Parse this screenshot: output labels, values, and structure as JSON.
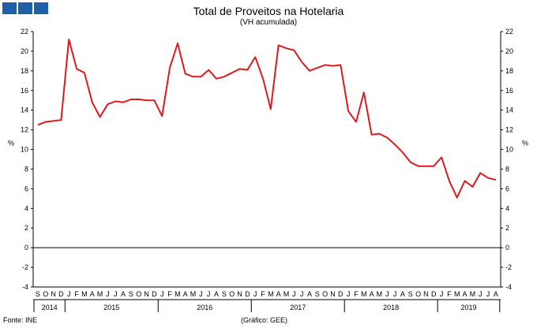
{
  "header": {
    "title": "Total de Proveitos na Hotelaria",
    "subtitle": "(VH acumulada)"
  },
  "footer": {
    "source": "Fonte: INE",
    "credit": "(Gráfico: GEE)"
  },
  "colors": {
    "logo": "#1f5fa8",
    "line": "#e0191b",
    "axis": "#000000"
  },
  "chart_data": {
    "type": "line",
    "title": "Total de Proveitos na Hotelaria",
    "subtitle": "(VH acumulada)",
    "ylabel_left": "%",
    "ylabel_right": "%",
    "ylim": [
      -4,
      22
    ],
    "yticks": [
      -4,
      -2,
      0,
      2,
      4,
      6,
      8,
      10,
      12,
      14,
      16,
      18,
      20,
      22
    ],
    "grid": false,
    "legend": "none",
    "month_labels": [
      "S",
      "O",
      "N",
      "D",
      "J",
      "F",
      "M",
      "A",
      "M",
      "J",
      "J",
      "A",
      "S",
      "O",
      "N",
      "D",
      "J",
      "F",
      "M",
      "A",
      "M",
      "J",
      "J",
      "A",
      "S",
      "O",
      "N",
      "D",
      "J",
      "F",
      "M",
      "A",
      "M",
      "J",
      "J",
      "A",
      "S",
      "O",
      "N",
      "D",
      "J",
      "F",
      "M",
      "A",
      "M",
      "J",
      "J",
      "A",
      "S",
      "O",
      "N",
      "D",
      "J",
      "F",
      "M",
      "A",
      "M",
      "J",
      "J",
      "A"
    ],
    "years": [
      {
        "label": "2014",
        "start": 0,
        "end": 4
      },
      {
        "label": "2015",
        "start": 4,
        "end": 16
      },
      {
        "label": "2016",
        "start": 16,
        "end": 28
      },
      {
        "label": "2017",
        "start": 28,
        "end": 40
      },
      {
        "label": "2018",
        "start": 40,
        "end": 52
      },
      {
        "label": "2019",
        "start": 52,
        "end": 60
      }
    ],
    "x": [
      "2014-09",
      "2014-10",
      "2014-11",
      "2014-12",
      "2015-01",
      "2015-02",
      "2015-03",
      "2015-04",
      "2015-05",
      "2015-06",
      "2015-07",
      "2015-08",
      "2015-09",
      "2015-10",
      "2015-11",
      "2015-12",
      "2016-01",
      "2016-02",
      "2016-03",
      "2016-04",
      "2016-05",
      "2016-06",
      "2016-07",
      "2016-08",
      "2016-09",
      "2016-10",
      "2016-11",
      "2016-12",
      "2017-01",
      "2017-02",
      "2017-03",
      "2017-04",
      "2017-05",
      "2017-06",
      "2017-07",
      "2017-08",
      "2017-09",
      "2017-10",
      "2017-11",
      "2017-12",
      "2018-01",
      "2018-02",
      "2018-03",
      "2018-04",
      "2018-05",
      "2018-06",
      "2018-07",
      "2018-08",
      "2018-09",
      "2018-10",
      "2018-11",
      "2018-12",
      "2019-01",
      "2019-02",
      "2019-03",
      "2019-04",
      "2019-05",
      "2019-06",
      "2019-07",
      "2019-08"
    ],
    "series": [
      {
        "values": [
          12.5,
          12.8,
          12.9,
          13.0,
          21.2,
          18.2,
          17.8,
          14.8,
          13.3,
          14.6,
          14.9,
          14.8,
          15.1,
          15.1,
          15.0,
          15.0,
          13.4,
          18.3,
          20.8,
          17.7,
          17.4,
          17.4,
          18.1,
          17.2,
          17.4,
          17.8,
          18.2,
          18.1,
          19.4,
          17.2,
          14.1,
          20.6,
          20.3,
          20.1,
          18.9,
          18.0,
          18.3,
          18.6,
          18.5,
          18.6,
          13.9,
          12.8,
          15.8,
          11.5,
          11.6,
          11.2,
          10.5,
          9.7,
          8.7,
          8.3,
          8.3,
          8.3,
          9.2,
          6.8,
          5.1,
          6.8,
          6.2,
          7.6,
          7.1,
          6.9
        ]
      }
    ]
  }
}
